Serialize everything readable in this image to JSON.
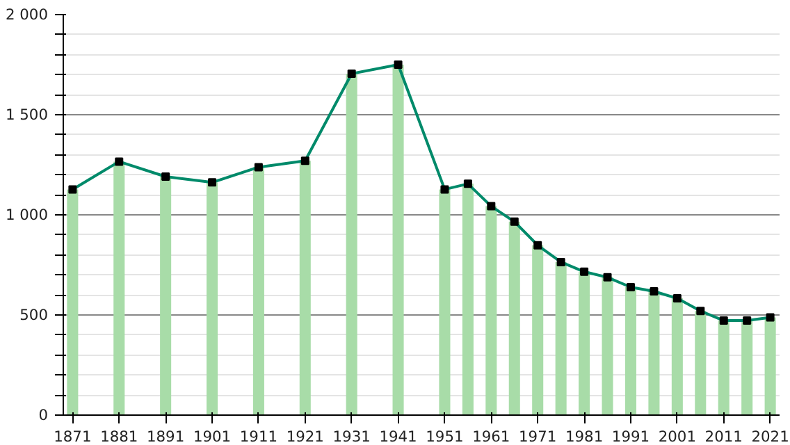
{
  "chart_data": {
    "type": "bar",
    "x": [
      1871,
      1881,
      1891,
      1901,
      1911,
      1921,
      1931,
      1941,
      1951,
      1956,
      1961,
      1966,
      1971,
      1976,
      1981,
      1986,
      1991,
      1996,
      2001,
      2006,
      2011,
      2016,
      2021
    ],
    "series": [
      {
        "color": "#a8dca8",
        "values": [
          1127,
          1266,
          1191,
          1162,
          1238,
          1270,
          1705,
          1750,
          1127,
          1155,
          1043,
          966,
          848,
          764,
          716,
          688,
          639,
          618,
          583,
          520,
          472,
          472,
          488
        ]
      },
      {
        "type": "line",
        "color": "#008a6a",
        "marker": "square",
        "line_style": "solid",
        "values": [
          1127,
          1266,
          1191,
          1162,
          1238,
          1270,
          1705,
          1750,
          1127,
          1155,
          1043,
          966,
          848,
          764,
          716,
          688,
          639,
          618,
          583,
          520,
          472,
          472,
          488
        ]
      }
    ],
    "xlim": [
      1869,
      2023
    ],
    "xticks": [
      1871,
      1881,
      1891,
      1901,
      1911,
      1921,
      1931,
      1941,
      1951,
      1961,
      1971,
      1981,
      1991,
      2001,
      2011,
      2021
    ],
    "ylim": [
      0,
      2000
    ],
    "yticks": [
      0,
      {
        "value": 100,
        "label": null
      },
      {
        "value": 200,
        "label": null
      },
      {
        "value": 300,
        "label": null
      },
      {
        "value": 400,
        "label": null
      },
      500,
      {
        "value": 600,
        "label": null
      },
      {
        "value": 700,
        "label": null
      },
      {
        "value": 800,
        "label": null
      },
      {
        "value": 900,
        "label": null
      },
      {
        "value": 1000,
        "label": "1 000"
      },
      {
        "value": 1100,
        "label": null
      },
      {
        "value": 1200,
        "label": null
      },
      {
        "value": 1300,
        "label": null
      },
      {
        "value": 1400,
        "label": null
      },
      {
        "value": 1500,
        "label": "1 500"
      },
      {
        "value": 1600,
        "label": null
      },
      {
        "value": 1700,
        "label": null
      },
      {
        "value": 1800,
        "label": null
      },
      {
        "value": 1900,
        "label": null
      },
      {
        "value": 2000,
        "label": "2 000"
      }
    ],
    "grid": "y"
  }
}
